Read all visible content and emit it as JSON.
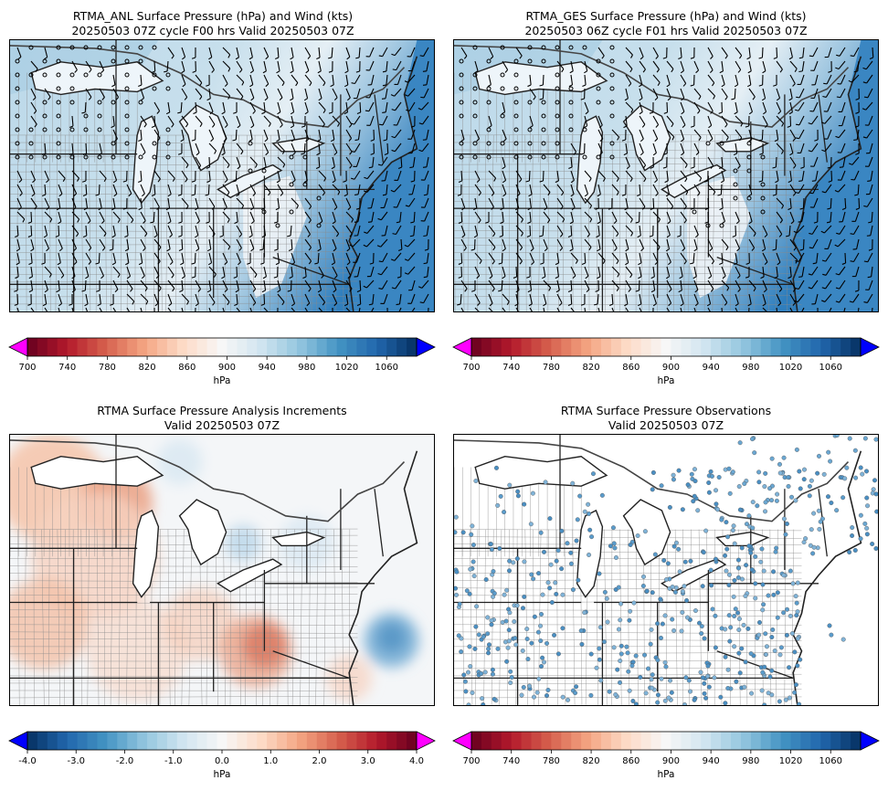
{
  "panels": [
    {
      "id": "anl",
      "title_line1": "RTMA_ANL Surface Pressure (hPa) and Wind (kts)",
      "title_line2": "20250503 07Z cycle F00 hrs Valid 20250503 07Z",
      "colorbar": {
        "unit": "hPa",
        "ticks": [
          "700",
          "740",
          "780",
          "820",
          "860",
          "900",
          "940",
          "980",
          "1020",
          "1060"
        ],
        "min": 700,
        "max": 1090,
        "cmap": "RdBu",
        "over_color": "#0000ff",
        "under_color": "#ff00ff"
      }
    },
    {
      "id": "ges",
      "title_line1": "RTMA_GES Surface Pressure (hPa) and Wind (kts)",
      "title_line2": "20250503 06Z cycle F01 hrs Valid 20250503 07Z",
      "colorbar": {
        "unit": "hPa",
        "ticks": [
          "700",
          "740",
          "780",
          "820",
          "860",
          "900",
          "940",
          "980",
          "1020",
          "1060"
        ],
        "min": 700,
        "max": 1090,
        "cmap": "RdBu",
        "over_color": "#0000ff",
        "under_color": "#ff00ff"
      }
    },
    {
      "id": "inc",
      "title_line1": "RTMA Surface Pressure Analysis Increments",
      "title_line2": "Valid 20250503 07Z",
      "colorbar": {
        "unit": "hPa",
        "ticks": [
          "-4.0",
          "-3.0",
          "-2.0",
          "-1.0",
          "0.0",
          "1.0",
          "2.0",
          "3.0",
          "4.0"
        ],
        "min": -4,
        "max": 4,
        "cmap": "RdBu_r",
        "over_color": "#ff00ff",
        "under_color": "#0000ff"
      }
    },
    {
      "id": "obs",
      "title_line1": "RTMA Surface Pressure Observations",
      "title_line2": "Valid 20250503 07Z",
      "colorbar": {
        "unit": "hPa",
        "ticks": [
          "700",
          "740",
          "780",
          "820",
          "860",
          "900",
          "940",
          "980",
          "1020",
          "1060"
        ],
        "min": 700,
        "max": 1090,
        "cmap": "RdBu",
        "over_color": "#0000ff",
        "under_color": "#ff00ff"
      }
    }
  ]
}
